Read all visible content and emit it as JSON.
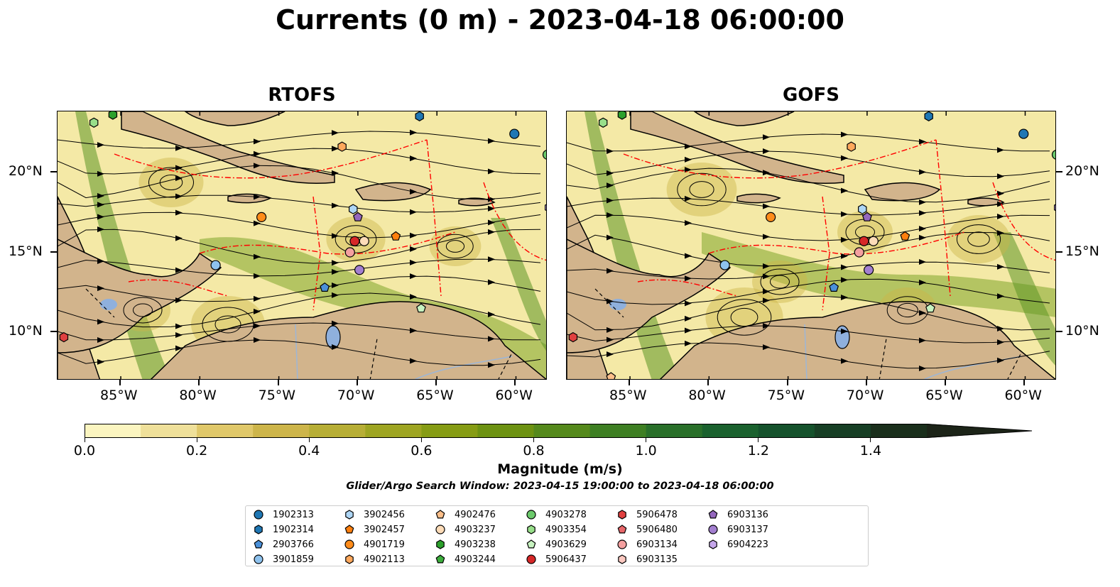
{
  "title": "Currents (0 m) - 2023-04-18 06:00:00",
  "panels": [
    {
      "title": "RTOFS"
    },
    {
      "title": "GOFS"
    }
  ],
  "axes": {
    "x_ticks": [
      "85°W",
      "80°W",
      "75°W",
      "70°W",
      "65°W",
      "60°W"
    ],
    "y_ticks": [
      "20°N",
      "15°N",
      "10°N"
    ]
  },
  "colorbar": {
    "label": "Magnitude (m/s)",
    "ticks": [
      "0.0",
      "0.2",
      "0.4",
      "0.6",
      "0.8",
      "1.0",
      "1.2",
      "1.4"
    ],
    "range": [
      0,
      1.5
    ],
    "extend": "max",
    "colors": [
      "#fbf5c0",
      "#efe09a",
      "#e0c86a",
      "#cdb54a",
      "#b7ae36",
      "#9ea522",
      "#869c14",
      "#6d9212",
      "#55891c",
      "#3e7f23",
      "#296f2a",
      "#1a612e",
      "#15522c",
      "#173f25",
      "#1a2f1c",
      "#1c2418"
    ]
  },
  "search_window": "Glider/Argo Search Window: 2023-04-15 19:00:00 to 2023-04-18 06:00:00",
  "colors": {
    "land": "#d2b48c",
    "ocean_low": "#f4e9a6",
    "eez": "#ff0000",
    "lakes": "#8fb0dd",
    "rivers": "#9db6d6"
  },
  "legend": [
    {
      "label": "1902313",
      "marker": "circle",
      "color": "#1f77b4"
    },
    {
      "label": "1902314",
      "marker": "hexagon",
      "color": "#1f77b4"
    },
    {
      "label": "2903766",
      "marker": "pentagon",
      "color": "#4a90d9"
    },
    {
      "label": "3901859",
      "marker": "circle",
      "color": "#8ec2ee"
    },
    {
      "label": "3902456",
      "marker": "hexagon",
      "color": "#aed6f5"
    },
    {
      "label": "3902457",
      "marker": "pentagon",
      "color": "#ff7f0e"
    },
    {
      "label": "4901719",
      "marker": "circle",
      "color": "#ff8c1a"
    },
    {
      "label": "4902113",
      "marker": "hexagon",
      "color": "#ffa85c"
    },
    {
      "label": "4902476",
      "marker": "pentagon",
      "color": "#fdbf8a"
    },
    {
      "label": "4903237",
      "marker": "circle",
      "color": "#fddcb8"
    },
    {
      "label": "4903238",
      "marker": "hexagon",
      "color": "#2ca02c"
    },
    {
      "label": "4903244",
      "marker": "pentagon",
      "color": "#3cae3c"
    },
    {
      "label": "4903278",
      "marker": "circle",
      "color": "#6cca6c"
    },
    {
      "label": "4903354",
      "marker": "hexagon",
      "color": "#98df8a"
    },
    {
      "label": "4903629",
      "marker": "pentagon",
      "color": "#c7f2c0"
    },
    {
      "label": "5906437",
      "marker": "circle",
      "color": "#d62728"
    },
    {
      "label": "5906478",
      "marker": "hexagon",
      "color": "#e04040"
    },
    {
      "label": "5906480",
      "marker": "pentagon",
      "color": "#e8676a"
    },
    {
      "label": "6903134",
      "marker": "circle",
      "color": "#f4a0a0"
    },
    {
      "label": "6903135",
      "marker": "hexagon",
      "color": "#fbc8c0"
    },
    {
      "label": "6903136",
      "marker": "pentagon",
      "color": "#9467bd"
    },
    {
      "label": "6903137",
      "marker": "circle",
      "color": "#a37fd0"
    },
    {
      "label": "6904223",
      "marker": "hexagon",
      "color": "#c5a6ea"
    }
  ],
  "panel_markers": [
    [
      {
        "id": "1902313",
        "lon": -60.1,
        "lat": 22.4
      },
      {
        "id": "1902314",
        "lon": -66.1,
        "lat": 23.5
      },
      {
        "id": "2903766",
        "lon": -72.1,
        "lat": 12.8
      },
      {
        "id": "3901859",
        "lon": -79.0,
        "lat": 14.2
      },
      {
        "id": "3902456",
        "lon": -70.3,
        "lat": 17.7
      },
      {
        "id": "3902457",
        "lon": -67.6,
        "lat": 16.0
      },
      {
        "id": "4901719",
        "lon": -76.1,
        "lat": 17.2
      },
      {
        "id": "4902113",
        "lon": -71.0,
        "lat": 21.6
      },
      {
        "id": "4903237",
        "lon": -69.6,
        "lat": 15.7
      },
      {
        "id": "4903238",
        "lon": -85.5,
        "lat": 23.6
      },
      {
        "id": "4903278",
        "lon": -58.0,
        "lat": 21.1
      },
      {
        "id": "4903354",
        "lon": -86.7,
        "lat": 23.1
      },
      {
        "id": "4903629",
        "lon": -66.0,
        "lat": 11.5
      },
      {
        "id": "5906437",
        "lon": -70.2,
        "lat": 15.7
      },
      {
        "id": "5906478",
        "lon": -88.6,
        "lat": 9.7
      },
      {
        "id": "6903134",
        "lon": -70.5,
        "lat": 15.0
      },
      {
        "id": "6903136",
        "lon": -70.0,
        "lat": 17.2
      },
      {
        "id": "6903137",
        "lon": -69.9,
        "lat": 13.9
      },
      {
        "id": "6904223",
        "lon": -57.9,
        "lat": 17.8
      }
    ],
    [
      {
        "id": "1902313",
        "lon": -60.1,
        "lat": 22.4
      },
      {
        "id": "1902314",
        "lon": -66.1,
        "lat": 23.5
      },
      {
        "id": "2903766",
        "lon": -72.1,
        "lat": 12.8
      },
      {
        "id": "3901859",
        "lon": -79.0,
        "lat": 14.2
      },
      {
        "id": "3902456",
        "lon": -70.3,
        "lat": 17.7
      },
      {
        "id": "3902457",
        "lon": -67.6,
        "lat": 16.0
      },
      {
        "id": "4901719",
        "lon": -76.1,
        "lat": 17.2
      },
      {
        "id": "4902113",
        "lon": -71.0,
        "lat": 21.6
      },
      {
        "id": "4902476",
        "lon": -86.2,
        "lat": 7.2
      },
      {
        "id": "4903237",
        "lon": -69.6,
        "lat": 15.7
      },
      {
        "id": "4903238",
        "lon": -85.5,
        "lat": 23.6
      },
      {
        "id": "4903278",
        "lon": -58.0,
        "lat": 21.1
      },
      {
        "id": "4903354",
        "lon": -86.7,
        "lat": 23.1
      },
      {
        "id": "4903629",
        "lon": -66.0,
        "lat": 11.5
      },
      {
        "id": "5906437",
        "lon": -70.2,
        "lat": 15.7
      },
      {
        "id": "5906478",
        "lon": -88.6,
        "lat": 9.7
      },
      {
        "id": "6903134",
        "lon": -70.5,
        "lat": 15.0
      },
      {
        "id": "6903136",
        "lon": -70.0,
        "lat": 17.2
      },
      {
        "id": "6903137",
        "lon": -69.9,
        "lat": 13.9
      },
      {
        "id": "6904223",
        "lon": -57.9,
        "lat": 17.8
      }
    ]
  ]
}
